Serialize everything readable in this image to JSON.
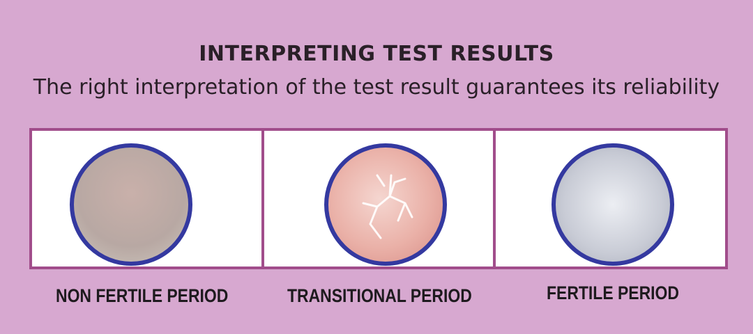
{
  "header": {
    "title": "INTERPRETING TEST RESULTS",
    "subtitle": "The right interpretation of the test result guarantees its reliability"
  },
  "panels": [
    {
      "label": "NON FERTILE PERIOD",
      "image": "non-fertile-saliva-sample"
    },
    {
      "label": "TRANSITIONAL PERIOD",
      "image": "transitional-fern-pattern-sample"
    },
    {
      "label": "FERTILE PERIOD",
      "image": "fertile-fern-pattern-sample"
    }
  ],
  "colors": {
    "background": "#d7a8d0",
    "frame": "#a14d8b",
    "circle_border": "#3439a0"
  }
}
